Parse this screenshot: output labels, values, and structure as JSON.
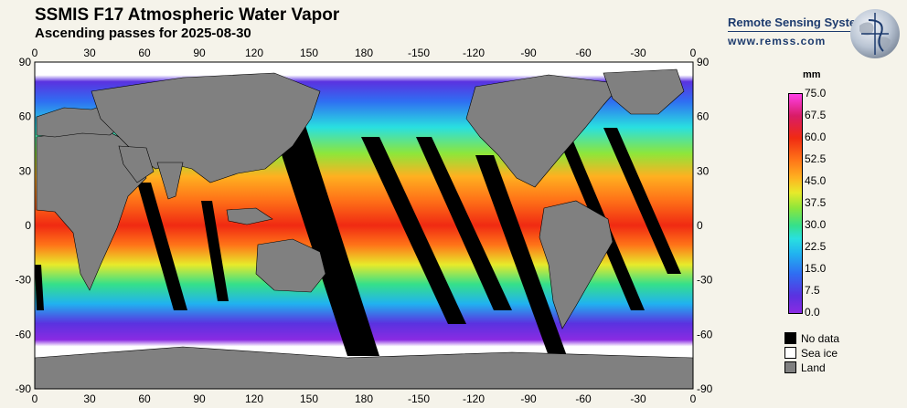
{
  "header": {
    "title": "SSMIS F17 Atmospheric Water Vapor",
    "subtitle": "Ascending passes for 2025-08-30"
  },
  "brand": {
    "name": "Remote Sensing Systems",
    "url": "www.remss.com"
  },
  "axes": {
    "x_ticks": [
      "0",
      "30",
      "60",
      "90",
      "120",
      "150",
      "180",
      "-150",
      "-120",
      "-90",
      "-60",
      "-30",
      "0"
    ],
    "y_ticks": [
      "90",
      "60",
      "30",
      "0",
      "-30",
      "-60",
      "-90"
    ]
  },
  "colorbar": {
    "unit": "mm",
    "labels": [
      "75.0",
      "67.5",
      "60.0",
      "52.5",
      "45.0",
      "37.5",
      "30.0",
      "22.5",
      "15.0",
      "7.5",
      "0.0"
    ],
    "range": [
      0,
      75
    ]
  },
  "legend": [
    {
      "label": "No data",
      "color": "#000000"
    },
    {
      "label": "Sea ice",
      "color": "#ffffff"
    },
    {
      "label": "Land",
      "color": "#808080"
    }
  ],
  "colors": {
    "land": "#808080",
    "no_data": "#000000",
    "sea_ice": "#ffffff",
    "brand": "#1d3b6e"
  }
}
